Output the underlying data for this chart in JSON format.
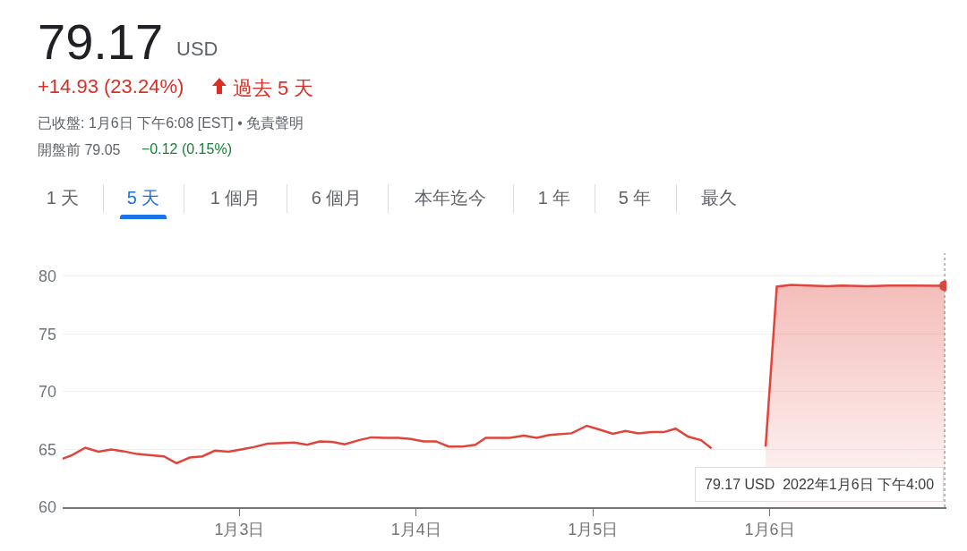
{
  "chart_data": {
    "type": "line",
    "title": "79.17",
    "annotations": [
      "USD",
      "+14.93 (23.24%)",
      "過去 5 天",
      "已收盤: 1月6日 下午6:08 [EST] • 免責聲明",
      "開盤前 79.05",
      "−0.12 (0.15%)",
      "1 天",
      "5 天",
      "1 個月",
      "6 個月",
      "本年迄今",
      "1 年",
      "5 年",
      "最久",
      "79.17 USD  2022年1月6日 下午4:00"
    ],
    "series": [
      {
        "type": "line",
        "color": "#e0443a",
        "x": [
          "2022-01-02T00:00",
          "2022-01-02T01:16",
          "2022-01-02T03:04",
          "2022-01-02T04:52",
          "2022-01-02T06:35",
          "2022-01-02T08:12",
          "2022-01-02T10:08",
          "2022-01-02T12:03",
          "2022-01-02T13:45",
          "2022-01-02T15:27",
          "2022-01-02T17:15",
          "2022-01-02T18:58",
          "2022-01-02T20:40",
          "2022-01-02T22:31",
          "2022-01-03T00:13",
          "2022-01-03T01:55",
          "2022-01-03T03:50",
          "2022-01-03T07:28",
          "2022-01-03T09:11",
          "2022-01-03T10:54",
          "2022-01-03T12:36",
          "2022-01-03T14:18",
          "2022-01-03T16:13",
          "2022-01-03T17:56",
          "2022-01-03T19:39",
          "2022-01-03T21:35",
          "2022-01-03T23:17",
          "2022-01-04T00:59",
          "2022-01-04T02:41",
          "2022-01-04T04:24",
          "2022-01-04T06:19",
          "2022-01-04T08:02",
          "2022-01-04T09:27",
          "2022-01-04T12:42",
          "2022-01-04T14:38",
          "2022-01-04T16:22",
          "2022-01-04T18:06",
          "2022-01-04T21:06",
          "2022-01-04T23:11",
          "2022-01-05T00:59",
          "2022-01-05T02:43",
          "2022-01-05T04:26",
          "2022-01-05T06:10",
          "2022-01-05T07:54",
          "2022-01-05T09:37",
          "2022-01-05T11:14",
          "2022-01-05T12:58",
          "2022-01-05T14:41",
          "2022-01-05T16:06"
        ],
        "values": [
          64.2,
          64.5,
          65.15,
          64.8,
          65.0,
          64.85,
          64.6,
          64.5,
          64.4,
          63.8,
          64.3,
          64.4,
          64.9,
          64.8,
          65.0,
          65.2,
          65.5,
          65.6,
          65.4,
          65.7,
          65.65,
          65.45,
          65.8,
          66.05,
          66.0,
          66.0,
          65.9,
          65.7,
          65.7,
          65.25,
          65.25,
          65.4,
          66.0,
          66.0,
          66.2,
          66.0,
          66.25,
          66.4,
          67.05,
          66.7,
          66.35,
          66.6,
          66.4,
          66.5,
          66.5,
          66.8,
          66.1,
          65.8,
          65.1
        ]
      },
      {
        "type": "area",
        "color": "#e0443a",
        "x": [
          "2022-01-05T23:27",
          "2022-01-06T00:58",
          "2022-01-06T02:54",
          "2022-01-06T07:51",
          "2022-01-06T09:48",
          "2022-01-06T13:15",
          "2022-01-06T16:16",
          "2022-01-06T23:46"
        ],
        "values": [
          65.25,
          79.1,
          79.25,
          79.13,
          79.2,
          79.13,
          79.2,
          79.17
        ]
      },
      {
        "type": "scatter",
        "color": "#e0443a",
        "x": [
          "2022-01-06T23:46"
        ],
        "values": [
          79.17
        ]
      }
    ],
    "xlim": [
      "2022-01-02",
      "2022-01-07"
    ],
    "xticks": [
      {
        "value": "2022-01-03",
        "label": "1月3日"
      },
      {
        "value": "2022-01-04",
        "label": "1月4日"
      },
      {
        "value": "2022-01-05",
        "label": "1月5日"
      },
      {
        "value": "2022-01-06",
        "label": "1月6日"
      }
    ],
    "ylim": [
      60,
      82
    ],
    "yticks": [
      60,
      65,
      70,
      75,
      80
    ],
    "grid": "y",
    "legend": false,
    "ref_lines": [
      {
        "axis": "x",
        "value": "2022-01-06T23:46",
        "color": "#777777",
        "line_style": "dotted"
      }
    ]
  }
}
